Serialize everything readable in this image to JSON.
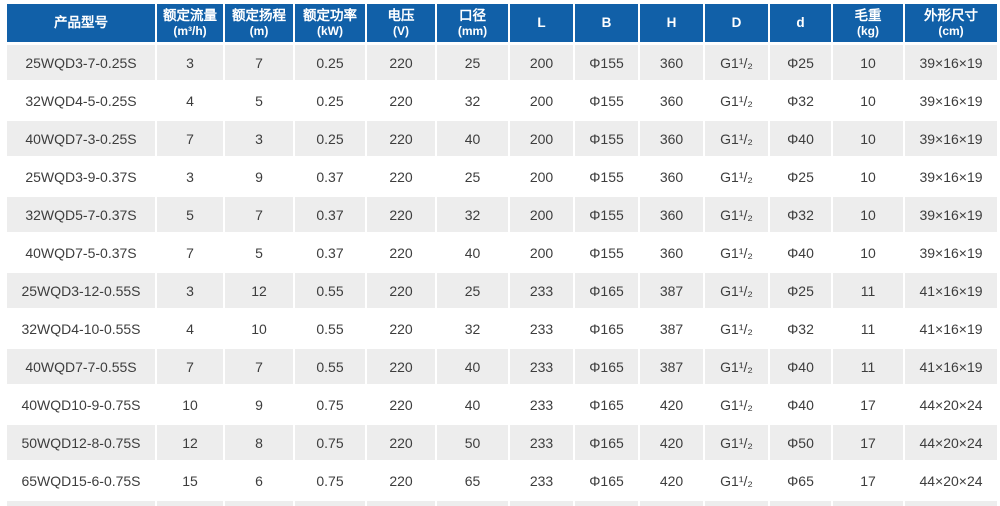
{
  "table": {
    "columns": [
      {
        "id": "model",
        "label": "产品型号",
        "sub": ""
      },
      {
        "id": "flow",
        "label": "额定流量",
        "sub": "(m³/h)"
      },
      {
        "id": "head",
        "label": "额定扬程",
        "sub": "(m)"
      },
      {
        "id": "power",
        "label": "额定功率",
        "sub": "(kW)"
      },
      {
        "id": "voltage",
        "label": "电压",
        "sub": "(V)"
      },
      {
        "id": "bore",
        "label": "口径",
        "sub": "(mm)"
      },
      {
        "id": "L",
        "label": "L",
        "sub": ""
      },
      {
        "id": "B",
        "label": "B",
        "sub": ""
      },
      {
        "id": "H",
        "label": "H",
        "sub": ""
      },
      {
        "id": "D",
        "label": "D",
        "sub": ""
      },
      {
        "id": "d",
        "label": "d",
        "sub": ""
      },
      {
        "id": "weight",
        "label": "毛重",
        "sub": "(kg)"
      },
      {
        "id": "size",
        "label": "外形尺寸",
        "sub": "(cm)"
      }
    ],
    "rows": [
      [
        "25WQD3-7-0.25S",
        "3",
        "7",
        "0.25",
        "220",
        "25",
        "200",
        "Φ155",
        "360",
        "G1¹/₂",
        "Φ25",
        "10",
        "39×16×19"
      ],
      [
        "32WQD4-5-0.25S",
        "4",
        "5",
        "0.25",
        "220",
        "32",
        "200",
        "Φ155",
        "360",
        "G1¹/₂",
        "Φ32",
        "10",
        "39×16×19"
      ],
      [
        "40WQD7-3-0.25S",
        "7",
        "3",
        "0.25",
        "220",
        "40",
        "200",
        "Φ155",
        "360",
        "G1¹/₂",
        "Φ40",
        "10",
        "39×16×19"
      ],
      [
        "25WQD3-9-0.37S",
        "3",
        "9",
        "0.37",
        "220",
        "25",
        "200",
        "Φ155",
        "360",
        "G1¹/₂",
        "Φ25",
        "10",
        "39×16×19"
      ],
      [
        "32WQD5-7-0.37S",
        "5",
        "7",
        "0.37",
        "220",
        "32",
        "200",
        "Φ155",
        "360",
        "G1¹/₂",
        "Φ32",
        "10",
        "39×16×19"
      ],
      [
        "40WQD7-5-0.37S",
        "7",
        "5",
        "0.37",
        "220",
        "40",
        "200",
        "Φ155",
        "360",
        "G1¹/₂",
        "Φ40",
        "10",
        "39×16×19"
      ],
      [
        "25WQD3-12-0.55S",
        "3",
        "12",
        "0.55",
        "220",
        "25",
        "233",
        "Φ165",
        "387",
        "G1¹/₂",
        "Φ25",
        "11",
        "41×16×19"
      ],
      [
        "32WQD4-10-0.55S",
        "4",
        "10",
        "0.55",
        "220",
        "32",
        "233",
        "Φ165",
        "387",
        "G1¹/₂",
        "Φ32",
        "11",
        "41×16×19"
      ],
      [
        "40WQD7-7-0.55S",
        "7",
        "7",
        "0.55",
        "220",
        "40",
        "233",
        "Φ165",
        "387",
        "G1¹/₂",
        "Φ40",
        "11",
        "41×16×19"
      ],
      [
        "40WQD10-9-0.75S",
        "10",
        "9",
        "0.75",
        "220",
        "40",
        "233",
        "Φ165",
        "420",
        "G1¹/₂",
        "Φ40",
        "17",
        "44×20×24"
      ],
      [
        "50WQD12-8-0.75S",
        "12",
        "8",
        "0.75",
        "220",
        "50",
        "233",
        "Φ165",
        "420",
        "G1¹/₂",
        "Φ50",
        "17",
        "44×20×24"
      ],
      [
        "65WQD15-6-0.75S",
        "15",
        "6",
        "0.75",
        "220",
        "65",
        "233",
        "Φ165",
        "420",
        "G1¹/₂",
        "Φ65",
        "17",
        "44×20×24"
      ]
    ]
  },
  "colors": {
    "header_bg": "#1160a8",
    "header_text": "#ffffff",
    "alt_row_bg": "#ededed",
    "row_bg": "#ffffff",
    "cell_text": "#3d3d3d",
    "separator": "#ffffff"
  }
}
